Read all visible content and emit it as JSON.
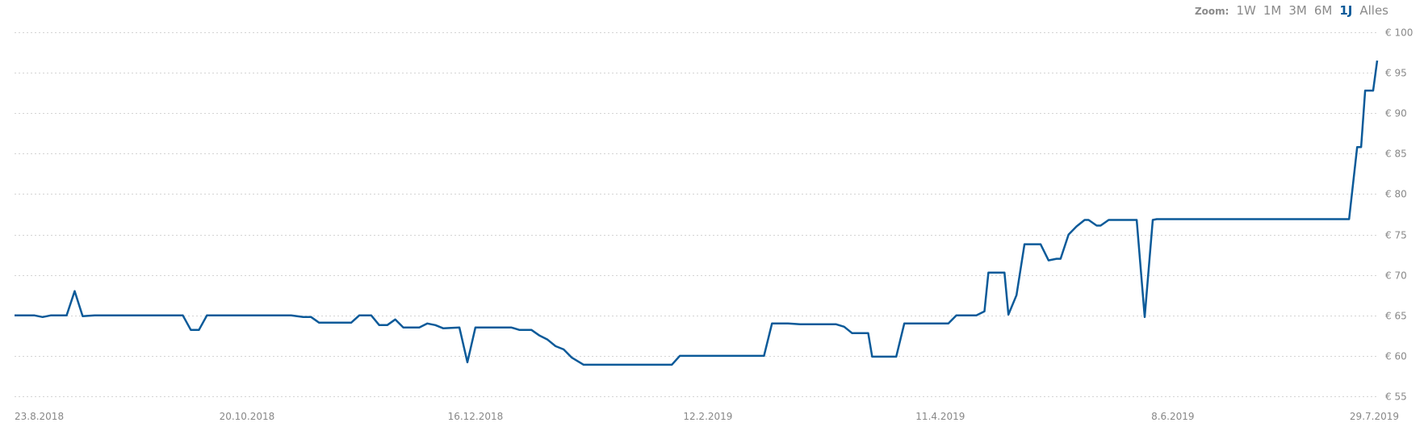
{
  "zoom": {
    "label": "Zoom:",
    "options": [
      "1W",
      "1M",
      "3M",
      "6M",
      "1J",
      "Alles"
    ],
    "active": "1J"
  },
  "colors": {
    "line": "#0b5a99",
    "grid": "#d4d4d4",
    "axis_text": "#888888",
    "zoom_active": "#0b5a99",
    "zoom_inactive": "#8a8a8a"
  },
  "chart_data": {
    "type": "line",
    "title": "",
    "xlabel": "",
    "ylabel": "",
    "x_axis": "date",
    "xlim": [
      "2018-08-23",
      "2019-07-29"
    ],
    "ylim": [
      55,
      100
    ],
    "y_ticks": [
      100,
      95,
      90,
      85,
      80,
      75,
      70,
      65,
      60,
      55
    ],
    "y_tick_labels": [
      "€ 100",
      "€ 95",
      "€ 90",
      "€ 85",
      "€ 80",
      "€ 75",
      "€ 70",
      "€ 65",
      "€ 60",
      "€ 55"
    ],
    "x_ticks": [
      "2018-08-23",
      "2018-10-20",
      "2018-12-16",
      "2019-02-12",
      "2019-04-11",
      "2019-06-08",
      "2019-07-29"
    ],
    "x_tick_labels": [
      "23.8.2018",
      "20.10.2018",
      "16.12.2018",
      "12.2.2019",
      "11.4.2019",
      "8.6.2019",
      "29.7.2019"
    ],
    "grid": true,
    "grid_style": "dotted horizontal",
    "y_axis_position": "right",
    "legend": "none",
    "series": [
      {
        "points": [
          [
            "2018-08-23",
            65.0
          ],
          [
            "2018-08-28",
            65.0
          ],
          [
            "2018-08-30",
            64.8
          ],
          [
            "2018-09-01",
            65.0
          ],
          [
            "2018-09-05",
            65.0
          ],
          [
            "2018-09-07",
            68.0
          ],
          [
            "2018-09-09",
            64.9
          ],
          [
            "2018-09-12",
            65.0
          ],
          [
            "2018-10-04",
            65.0
          ],
          [
            "2018-10-06",
            63.2
          ],
          [
            "2018-10-08",
            63.2
          ],
          [
            "2018-10-10",
            65.0
          ],
          [
            "2018-10-31",
            65.0
          ],
          [
            "2018-11-03",
            64.8
          ],
          [
            "2018-11-05",
            64.8
          ],
          [
            "2018-11-07",
            64.1
          ],
          [
            "2018-11-15",
            64.1
          ],
          [
            "2018-11-17",
            65.0
          ],
          [
            "2018-11-20",
            65.0
          ],
          [
            "2018-11-22",
            63.8
          ],
          [
            "2018-11-24",
            63.8
          ],
          [
            "2018-11-26",
            64.5
          ],
          [
            "2018-11-28",
            63.5
          ],
          [
            "2018-12-02",
            63.5
          ],
          [
            "2018-12-04",
            64.0
          ],
          [
            "2018-12-06",
            63.8
          ],
          [
            "2018-12-08",
            63.4
          ],
          [
            "2018-12-12",
            63.5
          ],
          [
            "2018-12-14",
            59.2
          ],
          [
            "2018-12-16",
            63.5
          ],
          [
            "2018-12-25",
            63.5
          ],
          [
            "2018-12-27",
            63.2
          ],
          [
            "2018-12-30",
            63.2
          ],
          [
            "2019-01-01",
            62.5
          ],
          [
            "2019-01-03",
            62.0
          ],
          [
            "2019-01-05",
            61.2
          ],
          [
            "2019-01-07",
            60.8
          ],
          [
            "2019-01-09",
            59.8
          ],
          [
            "2019-01-12",
            58.9
          ],
          [
            "2019-02-03",
            58.9
          ],
          [
            "2019-02-05",
            60.0
          ],
          [
            "2019-02-26",
            60.0
          ],
          [
            "2019-02-28",
            64.0
          ],
          [
            "2019-03-04",
            64.0
          ],
          [
            "2019-03-07",
            63.9
          ],
          [
            "2019-03-16",
            63.9
          ],
          [
            "2019-03-18",
            63.6
          ],
          [
            "2019-03-20",
            62.8
          ],
          [
            "2019-03-24",
            62.8
          ],
          [
            "2019-03-25",
            59.9
          ],
          [
            "2019-03-31",
            59.9
          ],
          [
            "2019-04-02",
            64.0
          ],
          [
            "2019-04-13",
            64.0
          ],
          [
            "2019-04-15",
            65.0
          ],
          [
            "2019-04-20",
            65.0
          ],
          [
            "2019-04-22",
            65.5
          ],
          [
            "2019-04-23",
            70.3
          ],
          [
            "2019-04-27",
            70.3
          ],
          [
            "2019-04-28",
            65.1
          ],
          [
            "2019-04-30",
            67.5
          ],
          [
            "2019-05-02",
            73.8
          ],
          [
            "2019-05-06",
            73.8
          ],
          [
            "2019-05-08",
            71.8
          ],
          [
            "2019-05-10",
            72.0
          ],
          [
            "2019-05-11",
            72.0
          ],
          [
            "2019-05-13",
            75.0
          ],
          [
            "2019-05-15",
            76.0
          ],
          [
            "2019-05-17",
            76.8
          ],
          [
            "2019-05-18",
            76.8
          ],
          [
            "2019-05-20",
            76.1
          ],
          [
            "2019-05-21",
            76.1
          ],
          [
            "2019-05-23",
            76.8
          ],
          [
            "2019-05-30",
            76.8
          ],
          [
            "2019-06-01",
            64.8
          ],
          [
            "2019-06-03",
            76.8
          ],
          [
            "2019-06-04",
            76.9
          ],
          [
            "2019-07-22",
            76.9
          ],
          [
            "2019-07-24",
            85.8
          ],
          [
            "2019-07-25",
            85.8
          ],
          [
            "2019-07-26",
            92.8
          ],
          [
            "2019-07-28",
            92.8
          ],
          [
            "2019-07-29",
            96.5
          ]
        ]
      }
    ]
  }
}
